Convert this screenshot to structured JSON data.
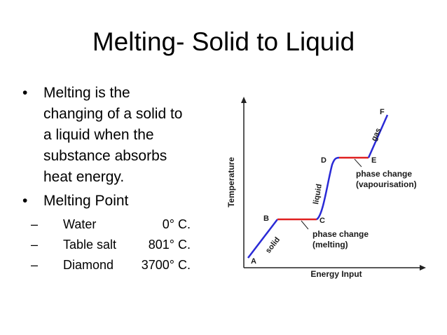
{
  "slide": {
    "title": "Melting- Solid to Liquid",
    "bullets": [
      {
        "lines": [
          "Melting is the",
          "changing of a solid to",
          "a liquid when the",
          "substance absorbs",
          "heat energy."
        ]
      },
      {
        "lines": [
          "Melting Point"
        ]
      }
    ],
    "melting_points": [
      {
        "substance": "Water",
        "value": "0° C."
      },
      {
        "substance": "Table salt",
        "value": "801° C."
      },
      {
        "substance": "Diamond",
        "value": "3700° C."
      }
    ]
  },
  "chart_data": {
    "type": "line",
    "xlabel": "Energy Input",
    "ylabel": "Temperature",
    "points": [
      "A",
      "B",
      "C",
      "D",
      "E",
      "F"
    ],
    "segments": [
      "solid",
      "phase change (melting)",
      "liquid",
      "phase change (vapourisation)",
      "gas"
    ],
    "segment_labels": [
      "solid",
      "liquid",
      "gas"
    ],
    "annotations": [
      {
        "lines": [
          "phase change",
          "(melting)"
        ]
      },
      {
        "lines": [
          "phase change",
          "(vapourisation)"
        ]
      }
    ],
    "colors": {
      "heating": "#2a2ad6",
      "phase_change": "#e02020",
      "axis": "#222222"
    }
  }
}
